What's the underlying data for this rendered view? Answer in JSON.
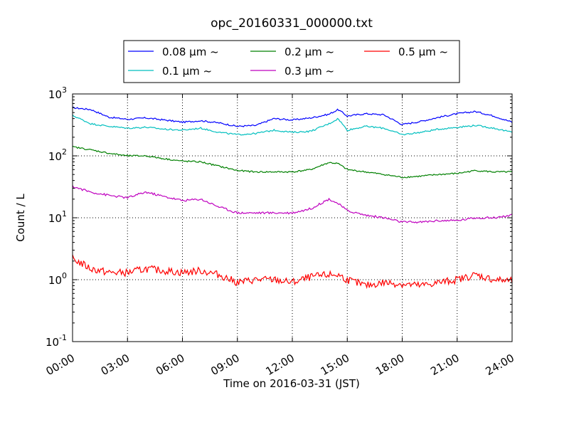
{
  "chart_data": {
    "type": "line",
    "title": "opc_20160331_000000.txt",
    "xlabel": "Time on 2016-03-31 (JST)",
    "ylabel": "Count / L",
    "yscale": "log",
    "ylim": [
      0.1,
      1000
    ],
    "xlim": [
      "00:00",
      "24:00"
    ],
    "grid": true,
    "legend_placement": "top-center",
    "x_ticks": [
      "00:00",
      "03:00",
      "06:00",
      "09:00",
      "12:00",
      "15:00",
      "18:00",
      "21:00",
      "24:00"
    ],
    "y_ticks": [
      {
        "base": "10",
        "exp": "-1",
        "value": 0.1
      },
      {
        "base": "10",
        "exp": "0",
        "value": 1
      },
      {
        "base": "10",
        "exp": "1",
        "value": 10
      },
      {
        "base": "10",
        "exp": "2",
        "value": 100
      },
      {
        "base": "10",
        "exp": "3",
        "value": 1000
      }
    ],
    "x": [
      "00:00",
      "01:00",
      "02:00",
      "03:00",
      "04:00",
      "05:00",
      "06:00",
      "07:00",
      "08:00",
      "09:00",
      "10:00",
      "11:00",
      "12:00",
      "13:00",
      "14:00",
      "14:30",
      "15:00",
      "16:00",
      "17:00",
      "18:00",
      "19:00",
      "20:00",
      "21:00",
      "22:00",
      "23:00",
      "24:00"
    ],
    "series": [
      {
        "name": "0.08 μm ~",
        "color": "#0000ff",
        "values": [
          600,
          560,
          420,
          390,
          410,
          380,
          350,
          370,
          340,
          300,
          310,
          400,
          380,
          410,
          470,
          560,
          440,
          480,
          460,
          320,
          360,
          420,
          480,
          520,
          440,
          350
        ]
      },
      {
        "name": "0.1 μm ~",
        "color": "#00bfbf",
        "values": [
          450,
          330,
          300,
          280,
          290,
          270,
          260,
          280,
          240,
          220,
          230,
          260,
          240,
          250,
          330,
          400,
          260,
          300,
          280,
          220,
          240,
          270,
          290,
          310,
          280,
          240
        ]
      },
      {
        "name": "0.2 μm ~",
        "color": "#008000",
        "values": [
          140,
          125,
          110,
          100,
          100,
          90,
          82,
          80,
          68,
          58,
          55,
          55,
          55,
          60,
          78,
          75,
          60,
          55,
          50,
          45,
          47,
          50,
          52,
          58,
          55,
          55
        ]
      },
      {
        "name": "0.3 μm ~",
        "color": "#bf00bf",
        "values": [
          32,
          26,
          23,
          21,
          26,
          22,
          19,
          20,
          15,
          12,
          12,
          12,
          12,
          14,
          20,
          17,
          13,
          11,
          10,
          8.5,
          8.5,
          9,
          9,
          10,
          10,
          11
        ]
      },
      {
        "name": "0.5 μm ~",
        "color": "#ff0000",
        "values": [
          2.2,
          1.5,
          1.3,
          1.3,
          1.5,
          1.4,
          1.3,
          1.4,
          1.2,
          0.9,
          1.0,
          1.0,
          0.9,
          1.1,
          1.2,
          1.2,
          1.0,
          0.8,
          0.9,
          0.85,
          0.8,
          0.9,
          1.0,
          1.2,
          1.0,
          0.95
        ]
      }
    ]
  }
}
